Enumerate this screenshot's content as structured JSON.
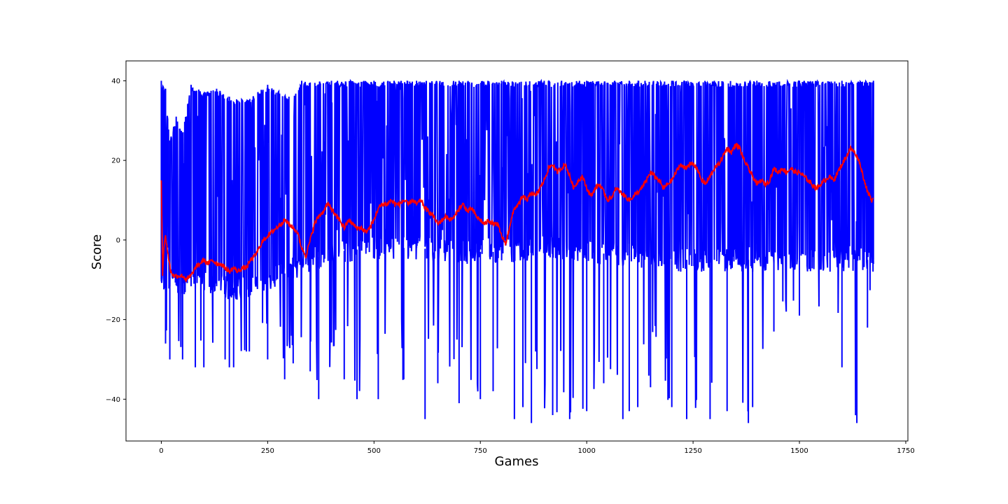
{
  "chart_data": {
    "type": "line",
    "title": "",
    "xlabel": "Games",
    "ylabel": "Score",
    "xlim": [
      -83,
      1755
    ],
    "ylim": [
      -50.5,
      45
    ],
    "xticks": [
      0,
      250,
      500,
      750,
      1000,
      1250,
      1500,
      1750
    ],
    "yticks": [
      -40,
      -20,
      0,
      20,
      40
    ],
    "grid": false,
    "legend": "none",
    "colors": {
      "raw": "#0000ff",
      "mean": "#ff0000"
    },
    "series": [
      {
        "role": "raw",
        "n_points": 1675,
        "x_max": 1674,
        "upper_envelope": [
          [
            0,
            40
          ],
          [
            10,
            38
          ],
          [
            20,
            25
          ],
          [
            35,
            31
          ],
          [
            50,
            27
          ],
          [
            70,
            39
          ],
          [
            100,
            37
          ],
          [
            130,
            38
          ],
          [
            160,
            36
          ],
          [
            200,
            35
          ],
          [
            250,
            39
          ],
          [
            300,
            36
          ],
          [
            330,
            40
          ],
          [
            400,
            40
          ],
          [
            500,
            40
          ],
          [
            600,
            40
          ],
          [
            700,
            40
          ],
          [
            800,
            40
          ],
          [
            900,
            40
          ],
          [
            1000,
            40
          ],
          [
            1100,
            40
          ],
          [
            1200,
            40
          ],
          [
            1300,
            40
          ],
          [
            1400,
            40
          ],
          [
            1500,
            40
          ],
          [
            1600,
            40
          ],
          [
            1674,
            40
          ]
        ],
        "lower_envelope": [
          [
            0,
            -10
          ],
          [
            10,
            -26
          ],
          [
            20,
            -30
          ],
          [
            50,
            -30
          ],
          [
            80,
            -32
          ],
          [
            100,
            -32
          ],
          [
            150,
            -30
          ],
          [
            160,
            -32
          ],
          [
            170,
            -32
          ],
          [
            200,
            -28
          ],
          [
            250,
            -30
          ],
          [
            290,
            -35
          ],
          [
            310,
            -31
          ],
          [
            350,
            -33
          ],
          [
            370,
            -40
          ],
          [
            430,
            -35
          ],
          [
            460,
            -40
          ],
          [
            510,
            -40
          ],
          [
            570,
            -35
          ],
          [
            620,
            -45
          ],
          [
            650,
            -36
          ],
          [
            700,
            -41
          ],
          [
            750,
            -40
          ],
          [
            780,
            -38
          ],
          [
            830,
            -45
          ],
          [
            850,
            -42
          ],
          [
            870,
            -46
          ],
          [
            920,
            -44
          ],
          [
            960,
            -45
          ],
          [
            1000,
            -43
          ],
          [
            1040,
            -36
          ],
          [
            1085,
            -45
          ],
          [
            1100,
            -43
          ],
          [
            1120,
            -42
          ],
          [
            1150,
            -37
          ],
          [
            1200,
            -42
          ],
          [
            1235,
            -45
          ],
          [
            1290,
            -45
          ],
          [
            1330,
            -43
          ],
          [
            1380,
            -46
          ],
          [
            1390,
            -42
          ],
          [
            1440,
            -23
          ],
          [
            1500,
            -19
          ],
          [
            1600,
            -32
          ],
          [
            1635,
            -46
          ],
          [
            1660,
            -22
          ],
          [
            1674,
            -6
          ]
        ],
        "typical_low": [
          [
            0,
            -10
          ],
          [
            50,
            -12
          ],
          [
            100,
            -11
          ],
          [
            150,
            -12
          ],
          [
            200,
            -12
          ],
          [
            250,
            -10
          ],
          [
            300,
            -8
          ],
          [
            330,
            -6
          ],
          [
            400,
            -3
          ],
          [
            500,
            -2
          ],
          [
            600,
            -2
          ],
          [
            700,
            -3
          ],
          [
            800,
            -3
          ],
          [
            900,
            -2
          ],
          [
            1000,
            -3
          ],
          [
            1100,
            -4
          ],
          [
            1200,
            -5
          ],
          [
            1300,
            -5
          ],
          [
            1400,
            -5
          ],
          [
            1500,
            -5
          ],
          [
            1600,
            -5
          ],
          [
            1674,
            -5
          ]
        ]
      },
      {
        "role": "mean",
        "values": [
          [
            0,
            15
          ],
          [
            3,
            -9
          ],
          [
            6,
            -2
          ],
          [
            10,
            1
          ],
          [
            15,
            -3
          ],
          [
            22,
            -8
          ],
          [
            30,
            -9
          ],
          [
            40,
            -9
          ],
          [
            50,
            -9
          ],
          [
            60,
            -10
          ],
          [
            70,
            -9
          ],
          [
            80,
            -7
          ],
          [
            90,
            -6
          ],
          [
            100,
            -5
          ],
          [
            110,
            -6
          ],
          [
            120,
            -5
          ],
          [
            130,
            -6
          ],
          [
            140,
            -6
          ],
          [
            150,
            -7
          ],
          [
            160,
            -8
          ],
          [
            170,
            -7
          ],
          [
            180,
            -8
          ],
          [
            190,
            -7
          ],
          [
            200,
            -7
          ],
          [
            210,
            -5
          ],
          [
            220,
            -4
          ],
          [
            230,
            -2
          ],
          [
            240,
            0
          ],
          [
            250,
            1
          ],
          [
            260,
            2
          ],
          [
            270,
            3
          ],
          [
            280,
            4
          ],
          [
            290,
            5
          ],
          [
            300,
            4
          ],
          [
            310,
            3
          ],
          [
            320,
            2
          ],
          [
            330,
            -2
          ],
          [
            340,
            -4
          ],
          [
            350,
            0
          ],
          [
            360,
            4
          ],
          [
            370,
            6
          ],
          [
            380,
            7
          ],
          [
            390,
            9
          ],
          [
            400,
            8
          ],
          [
            410,
            6
          ],
          [
            420,
            5
          ],
          [
            430,
            3
          ],
          [
            440,
            5
          ],
          [
            450,
            4
          ],
          [
            460,
            3
          ],
          [
            470,
            3
          ],
          [
            480,
            2
          ],
          [
            490,
            3
          ],
          [
            500,
            5
          ],
          [
            510,
            8
          ],
          [
            520,
            9
          ],
          [
            530,
            9
          ],
          [
            540,
            10
          ],
          [
            550,
            9
          ],
          [
            560,
            9
          ],
          [
            570,
            10
          ],
          [
            580,
            9
          ],
          [
            590,
            10
          ],
          [
            600,
            9
          ],
          [
            610,
            10
          ],
          [
            620,
            8
          ],
          [
            630,
            7
          ],
          [
            640,
            6
          ],
          [
            650,
            4
          ],
          [
            660,
            5
          ],
          [
            670,
            6
          ],
          [
            680,
            5
          ],
          [
            690,
            6
          ],
          [
            700,
            8
          ],
          [
            710,
            9
          ],
          [
            720,
            7
          ],
          [
            730,
            8
          ],
          [
            740,
            6
          ],
          [
            750,
            5
          ],
          [
            760,
            4
          ],
          [
            770,
            5
          ],
          [
            780,
            4
          ],
          [
            790,
            4
          ],
          [
            800,
            1
          ],
          [
            810,
            -1
          ],
          [
            820,
            4
          ],
          [
            830,
            8
          ],
          [
            840,
            9
          ],
          [
            850,
            11
          ],
          [
            860,
            10
          ],
          [
            870,
            12
          ],
          [
            880,
            11
          ],
          [
            890,
            13
          ],
          [
            900,
            15
          ],
          [
            910,
            18
          ],
          [
            920,
            19
          ],
          [
            930,
            17
          ],
          [
            940,
            18
          ],
          [
            950,
            19
          ],
          [
            960,
            16
          ],
          [
            970,
            13
          ],
          [
            980,
            15
          ],
          [
            990,
            16
          ],
          [
            1000,
            13
          ],
          [
            1010,
            11
          ],
          [
            1020,
            13
          ],
          [
            1030,
            14
          ],
          [
            1040,
            12
          ],
          [
            1050,
            10
          ],
          [
            1060,
            11
          ],
          [
            1070,
            13
          ],
          [
            1080,
            12
          ],
          [
            1090,
            11
          ],
          [
            1100,
            10
          ],
          [
            1110,
            11
          ],
          [
            1120,
            12
          ],
          [
            1130,
            13
          ],
          [
            1140,
            15
          ],
          [
            1150,
            17
          ],
          [
            1160,
            16
          ],
          [
            1170,
            15
          ],
          [
            1180,
            13
          ],
          [
            1190,
            14
          ],
          [
            1200,
            15
          ],
          [
            1210,
            17
          ],
          [
            1220,
            19
          ],
          [
            1230,
            18
          ],
          [
            1240,
            19
          ],
          [
            1250,
            19
          ],
          [
            1260,
            18
          ],
          [
            1270,
            15
          ],
          [
            1280,
            14
          ],
          [
            1290,
            16
          ],
          [
            1300,
            18
          ],
          [
            1310,
            19
          ],
          [
            1320,
            21
          ],
          [
            1330,
            23
          ],
          [
            1340,
            22
          ],
          [
            1350,
            24
          ],
          [
            1360,
            23
          ],
          [
            1370,
            20
          ],
          [
            1380,
            18
          ],
          [
            1390,
            16
          ],
          [
            1400,
            14
          ],
          [
            1410,
            15
          ],
          [
            1420,
            14
          ],
          [
            1430,
            15
          ],
          [
            1440,
            18
          ],
          [
            1450,
            17
          ],
          [
            1460,
            18
          ],
          [
            1470,
            17
          ],
          [
            1480,
            18
          ],
          [
            1490,
            17
          ],
          [
            1500,
            17
          ],
          [
            1510,
            16
          ],
          [
            1520,
            15
          ],
          [
            1530,
            14
          ],
          [
            1540,
            13
          ],
          [
            1550,
            14
          ],
          [
            1560,
            15
          ],
          [
            1570,
            16
          ],
          [
            1580,
            15
          ],
          [
            1590,
            17
          ],
          [
            1600,
            19
          ],
          [
            1610,
            21
          ],
          [
            1620,
            23
          ],
          [
            1630,
            22
          ],
          [
            1640,
            20
          ],
          [
            1650,
            16
          ],
          [
            1660,
            12
          ],
          [
            1670,
            10
          ],
          [
            1674,
            11
          ]
        ]
      }
    ]
  }
}
